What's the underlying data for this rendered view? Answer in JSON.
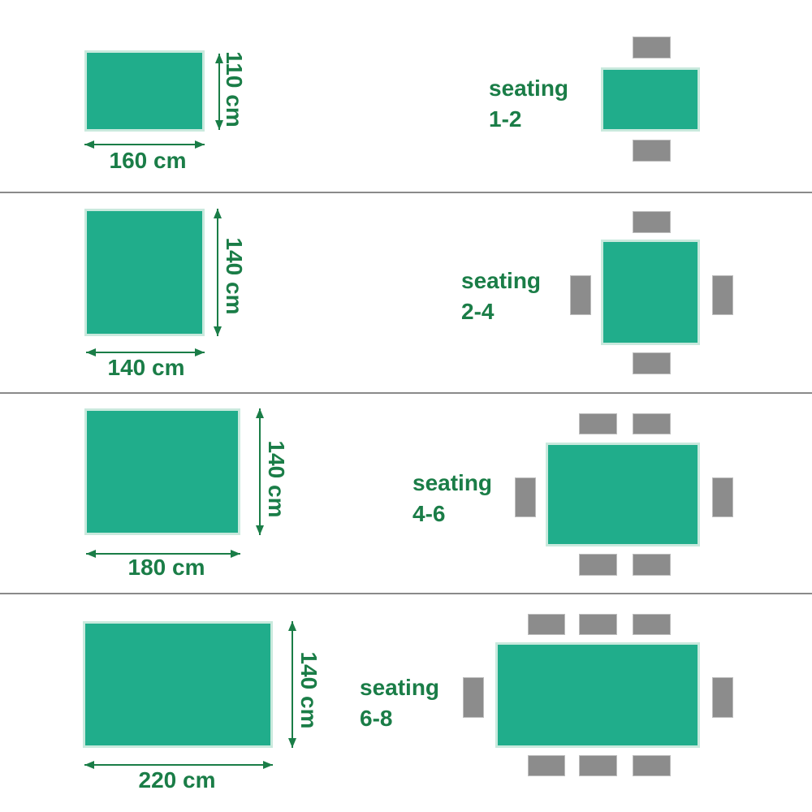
{
  "colors": {
    "table": "#20ad8b",
    "table_border": "#c9e9dd",
    "chair": "#8c8c8c",
    "text": "#1a7d47",
    "divider": "#8a8a8a"
  },
  "sections": [
    {
      "width_label": "160 cm",
      "depth_label": "110 cm",
      "seating_word": "seating",
      "seating_range": "1-2"
    },
    {
      "width_label": "140 cm",
      "depth_label": "140 cm",
      "seating_word": "seating",
      "seating_range": "2-4"
    },
    {
      "width_label": "180 cm",
      "depth_label": "140 cm",
      "seating_word": "seating",
      "seating_range": "4-6"
    },
    {
      "width_label": "220 cm",
      "depth_label": "140 cm",
      "seating_word": "seating",
      "seating_range": "6-8"
    }
  ]
}
